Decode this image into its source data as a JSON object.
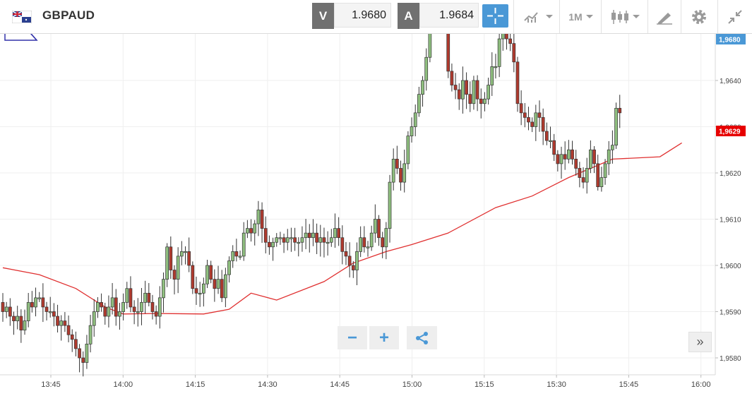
{
  "toolbar": {
    "symbol": "GBPAUD",
    "bid_label": "V",
    "bid_value": "1.9680",
    "ask_label": "A",
    "ask_value": "1.9684",
    "timeframe": "1M",
    "icons": [
      "flag-icon",
      "crosshair-icon",
      "indicators-icon",
      "timeframe-dropdown",
      "candle-type-icon",
      "draw-tool-icon",
      "settings-icon",
      "collapse-icon"
    ]
  },
  "controls": {
    "zoom_out": "−",
    "zoom_in": "+",
    "share_icon": "share-icon",
    "scroll_end": "»"
  },
  "chart_data": {
    "type": "candlestick",
    "instrument": "GBPAUD",
    "interval_minutes": 1,
    "x_tick_labels": [
      "13:45",
      "14:00",
      "14:15",
      "14:30",
      "14:45",
      "15:00",
      "15:15",
      "15:30",
      "15:45",
      "16:00"
    ],
    "y_tick_labels": [
      "1,9580",
      "1,9590",
      "1,9600",
      "1,9610",
      "1,9620",
      "1,9630",
      "1,9640"
    ],
    "ylim": [
      1.9573,
      1.9698
    ],
    "price_markers": {
      "top": "1,9680",
      "last": "1,9629"
    },
    "colors": {
      "up": "#8fbf7f",
      "down": "#b03a2e",
      "ma": "#e03030",
      "last_marker": "#e60000",
      "top_marker": "#4a98d6"
    },
    "grid": true,
    "closes": [
      1.959,
      1.9591,
      1.9589,
      1.9588,
      1.9589,
      1.9586,
      1.9588,
      1.9592,
      1.9591,
      1.9593,
      1.9593,
      1.9591,
      1.959,
      1.959,
      1.9589,
      1.9587,
      1.9588,
      1.9587,
      1.9585,
      1.9584,
      1.9582,
      1.958,
      1.9579,
      1.9583,
      1.9587,
      1.959,
      1.9592,
      1.9591,
      1.9589,
      1.9591,
      1.9593,
      1.9589,
      1.959,
      1.9592,
      1.9595,
      1.9591,
      1.959,
      1.959,
      1.9592,
      1.9594,
      1.9592,
      1.959,
      1.9589,
      1.9593,
      1.9597,
      1.9604,
      1.9599,
      1.9597,
      1.9602,
      1.9603,
      1.9603,
      1.96,
      1.9595,
      1.9594,
      1.9594,
      1.9596,
      1.96,
      1.9597,
      1.9595,
      1.9597,
      1.9593,
      1.9598,
      1.9601,
      1.9603,
      1.9602,
      1.9602,
      1.9607,
      1.9608,
      1.9607,
      1.9609,
      1.9612,
      1.9608,
      1.9605,
      1.9604,
      1.9605,
      1.9606,
      1.9606,
      1.9605,
      1.9606,
      1.9606,
      1.9605,
      1.9605,
      1.9606,
      1.9607,
      1.9606,
      1.9607,
      1.9605,
      1.9606,
      1.9605,
      1.9605,
      1.9606,
      1.9608,
      1.9606,
      1.9603,
      1.9602,
      1.96,
      1.9599,
      1.9603,
      1.9606,
      1.9604,
      1.9604,
      1.9607,
      1.961,
      1.9606,
      1.9604,
      1.9608,
      1.9618,
      1.9623,
      1.9621,
      1.9618,
      1.9622,
      1.9628,
      1.963,
      1.9633,
      1.9637,
      1.964,
      1.9645,
      1.9652,
      1.966,
      1.9659,
      1.9657,
      1.9654,
      1.9642,
      1.9639,
      1.9638,
      1.9636,
      1.964,
      1.9637,
      1.9635,
      1.964,
      1.9636,
      1.9635,
      1.9636,
      1.9639,
      1.9643,
      1.9643,
      1.9649,
      1.9651,
      1.9649,
      1.9648,
      1.9644,
      1.9635,
      1.9633,
      1.9632,
      1.9631,
      1.963,
      1.9633,
      1.9632,
      1.9629,
      1.9627,
      1.9627,
      1.9624,
      1.9622,
      1.9624,
      1.9623,
      1.9625,
      1.9623,
      1.9621,
      1.9619,
      1.9618,
      1.9621,
      1.9625,
      1.9622,
      1.9617,
      1.9619,
      1.9622,
      1.9625,
      1.9626,
      1.9634,
      1.9633
    ],
    "ma_points": [
      [
        0,
        1.95995
      ],
      [
        10,
        1.9598
      ],
      [
        20,
        1.9595
      ],
      [
        28,
        1.9591
      ],
      [
        33,
        1.95895
      ],
      [
        42,
        1.95896
      ],
      [
        55,
        1.95895
      ],
      [
        62,
        1.95905
      ],
      [
        68,
        1.9594
      ],
      [
        75,
        1.95925
      ],
      [
        88,
        1.95965
      ],
      [
        96,
        1.96005
      ],
      [
        105,
        1.9603
      ],
      [
        112,
        1.96045
      ],
      [
        122,
        1.9607
      ],
      [
        135,
        1.96125
      ],
      [
        145,
        1.9615
      ],
      [
        155,
        1.9619
      ],
      [
        167,
        1.9623
      ],
      [
        180,
        1.96235
      ],
      [
        186,
        1.96265
      ]
    ]
  }
}
